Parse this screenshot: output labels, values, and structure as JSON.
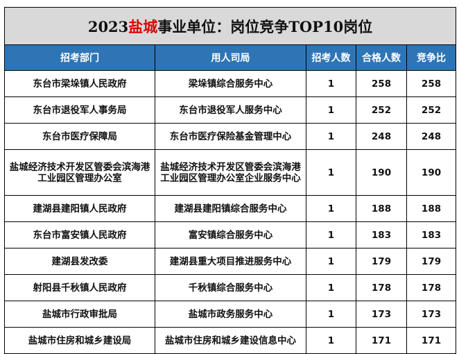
{
  "title": {
    "prefix": "2023",
    "highlight": "盐城",
    "suffix": "事业单位：岗位竞争TOP10岗位",
    "highlight_color": "#e00000"
  },
  "header_color": "#2e75b6",
  "columns": [
    "招考部门",
    "用人司局",
    "招考人数",
    "合格人数",
    "竞争比"
  ],
  "rows": [
    {
      "dept": "东台市梁垛镇人民政府",
      "unit": "梁垛镇综合服务中心",
      "recruit": "1",
      "qualified": "258",
      "ratio": "258"
    },
    {
      "dept": "东台市退役军人事务局",
      "unit": "东台市退役军人服务中心",
      "recruit": "1",
      "qualified": "252",
      "ratio": "252"
    },
    {
      "dept": "东台市医疗保障局",
      "unit": "东台市医疗保险基金管理中心",
      "recruit": "1",
      "qualified": "248",
      "ratio": "248"
    },
    {
      "dept": "盐城经济技术开发区管委会滨海港工业园区管理办公室",
      "unit": "盐城经济技术开发区管委会滨海港工业园区管理办公室企业服务中心",
      "recruit": "1",
      "qualified": "190",
      "ratio": "190"
    },
    {
      "dept": "建湖县建阳镇人民政府",
      "unit": "建湖县建阳镇综合服务中心",
      "recruit": "1",
      "qualified": "188",
      "ratio": "188"
    },
    {
      "dept": "东台市富安镇人民政府",
      "unit": "富安镇综合服务中心",
      "recruit": "1",
      "qualified": "183",
      "ratio": "183"
    },
    {
      "dept": "建湖县发改委",
      "unit": "建湖县重大项目推进服务中心",
      "recruit": "1",
      "qualified": "179",
      "ratio": "179"
    },
    {
      "dept": "射阳县千秋镇人民政府",
      "unit": "千秋镇综合服务中心",
      "recruit": "1",
      "qualified": "178",
      "ratio": "178"
    },
    {
      "dept": "盐城市行政审批局",
      "unit": "盐城市政务服务中心",
      "recruit": "1",
      "qualified": "173",
      "ratio": "173"
    },
    {
      "dept": "盐城市住房和城乡建设局",
      "unit": "盐城市住房和城乡建设信息中心",
      "recruit": "1",
      "qualified": "171",
      "ratio": "171"
    }
  ]
}
